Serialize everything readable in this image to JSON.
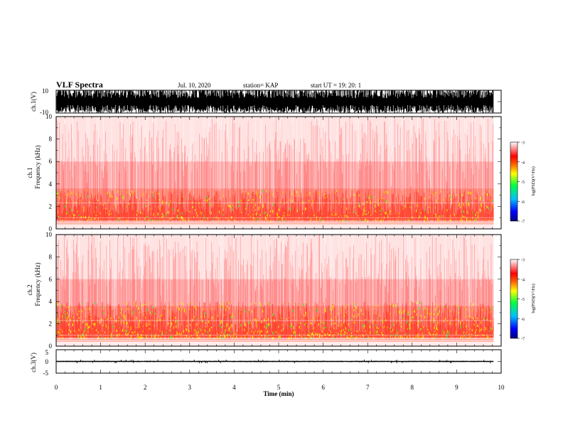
{
  "header": {
    "title": "VLF Spectra",
    "date": "Jul. 10, 2020",
    "station": "station= KAP",
    "start": "start  UT =    19: 20: 1"
  },
  "chart_data": [
    {
      "type": "line",
      "name": "ch1-waveform",
      "ylabel": "ch.1(V)",
      "ylim": [
        -10,
        10
      ],
      "yticks": [
        "10",
        "-10"
      ],
      "description_values": {
        "amplitude_range_V": [
          -10,
          10
        ]
      }
    },
    {
      "type": "heatmap",
      "name": "ch1-spectrogram",
      "ylabel": "ch.1\nFrequency  (kHz)",
      "ylim": [
        0,
        10
      ],
      "yticks": [
        "0",
        "2",
        "4",
        "6",
        "8",
        "10"
      ],
      "colorbar": {
        "label": "log(PSD)(V²/Hz)",
        "range": [
          -7,
          -3
        ],
        "ticks": [
          "-3",
          "-4",
          "-5",
          "-6",
          "-7"
        ]
      },
      "band_kHz": [
        0.5,
        3.5
      ]
    },
    {
      "type": "heatmap",
      "name": "ch2-spectrogram",
      "ylabel": "ch.2\nFrequency  (kHz)",
      "ylim": [
        0,
        10
      ],
      "yticks": [
        "0",
        "2",
        "4",
        "6",
        "8",
        "10"
      ],
      "colorbar": {
        "label": "log(PSD)(V²/Hz)",
        "range": [
          -7,
          -3
        ],
        "ticks": [
          "-3",
          "-4",
          "-5",
          "-6",
          "-7"
        ]
      },
      "band_kHz": [
        0.5,
        4.0
      ]
    },
    {
      "type": "line",
      "name": "ch3-waveform",
      "ylabel": "ch.3(V)",
      "ylim": [
        -5,
        5
      ],
      "yticks": [
        "5",
        "0",
        "-5"
      ],
      "level_V": [
        -0.3,
        0.3
      ]
    }
  ],
  "xaxis": {
    "label": "Time  (min)",
    "range": [
      0,
      10
    ],
    "ticks": [
      "0",
      "1",
      "2",
      "3",
      "4",
      "5",
      "6",
      "7",
      "8",
      "9",
      "10"
    ],
    "data_end_min": 9.83
  }
}
